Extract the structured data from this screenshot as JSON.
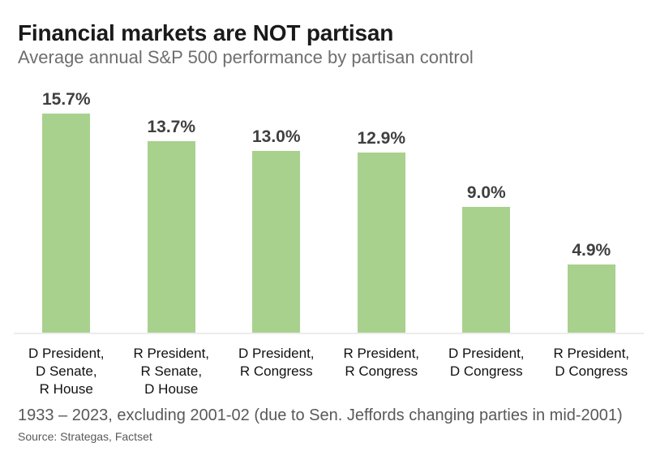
{
  "header": {
    "title": "Financial markets are NOT partisan",
    "subtitle": "Average annual S&P 500 performance by partisan control"
  },
  "chart_data": {
    "type": "bar",
    "title": "Financial markets are NOT partisan",
    "subtitle": "Average annual S&P 500 performance by partisan control",
    "categories": [
      [
        "D President,",
        "D Senate,",
        "R House"
      ],
      [
        "R President,",
        "R Senate,",
        "D House"
      ],
      [
        "D President,",
        "R Congress"
      ],
      [
        "R President,",
        "R Congress"
      ],
      [
        "D President,",
        "D Congress"
      ],
      [
        "R President,",
        "D Congress"
      ]
    ],
    "values": [
      15.7,
      13.7,
      13.0,
      12.9,
      9.0,
      4.9
    ],
    "value_labels": [
      "15.7%",
      "13.7%",
      "13.0%",
      "12.9%",
      "9.0%",
      "4.9%"
    ],
    "ylabel": "",
    "xlabel": "",
    "ylim": [
      0,
      16.5
    ],
    "grid": false,
    "legend": false,
    "bar_color": "#a9d18e",
    "value_label_color": "#3f3f3f",
    "baseline_color": "#ececec"
  },
  "footer": {
    "note": "1933 – 2023, excluding 2001-02 (due to Sen. Jeffords changing parties in mid-2001)",
    "source": "Source: Strategas, Factset"
  }
}
